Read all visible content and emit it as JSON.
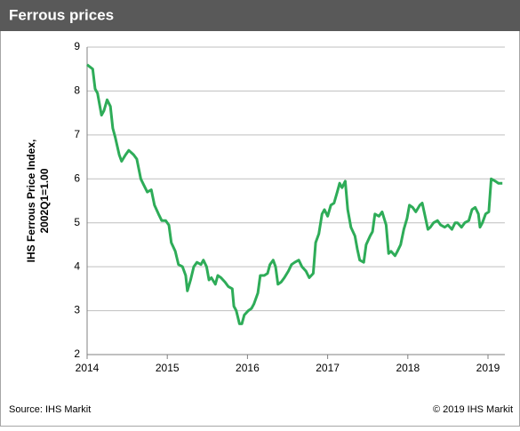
{
  "chart_data": {
    "type": "line",
    "title": "Ferrous prices",
    "ylabel": [
      "IHS Ferrous Price Index,",
      "2002Q1=1.00"
    ],
    "source": "Source: IHS Markit",
    "copyright": "© 2019 IHS Markit",
    "color": "#2eac58",
    "xlim": [
      2014,
      2019.21
    ],
    "xticks": [
      2014,
      2015,
      2016,
      2017,
      2018,
      2019
    ],
    "ylim": [
      2,
      9
    ],
    "yticks": [
      2,
      3,
      4,
      5,
      6,
      7,
      8,
      9
    ],
    "grid": true,
    "x": [
      2014.0,
      2014.07,
      2014.1,
      2014.13,
      2014.18,
      2014.21,
      2014.25,
      2014.29,
      2014.32,
      2014.35,
      2014.4,
      2014.43,
      2014.48,
      2014.52,
      2014.58,
      2014.62,
      2014.67,
      2014.71,
      2014.75,
      2014.8,
      2014.84,
      2014.89,
      2014.93,
      2014.98,
      2015.02,
      2015.05,
      2015.1,
      2015.14,
      2015.19,
      2015.23,
      2015.25,
      2015.29,
      2015.33,
      2015.37,
      2015.42,
      2015.45,
      2015.49,
      2015.52,
      2015.55,
      2015.6,
      2015.63,
      2015.67,
      2015.72,
      2015.76,
      2015.81,
      2015.83,
      2015.86,
      2015.9,
      2015.93,
      2015.96,
      2016.01,
      2016.05,
      2016.08,
      2016.13,
      2016.16,
      2016.21,
      2016.25,
      2016.28,
      2016.32,
      2016.35,
      2016.38,
      2016.42,
      2016.46,
      2016.51,
      2016.55,
      2016.59,
      2016.64,
      2016.68,
      2016.73,
      2016.77,
      2016.82,
      2016.85,
      2016.89,
      2016.93,
      2016.96,
      2017.0,
      2017.04,
      2017.08,
      2017.12,
      2017.15,
      2017.18,
      2017.22,
      2017.25,
      2017.29,
      2017.34,
      2017.37,
      2017.4,
      2017.45,
      2017.48,
      2017.53,
      2017.56,
      2017.59,
      2017.64,
      2017.68,
      2017.73,
      2017.76,
      2017.79,
      2017.84,
      2017.87,
      2017.91,
      2017.95,
      2017.99,
      2018.02,
      2018.06,
      2018.1,
      2018.15,
      2018.18,
      2018.21,
      2018.25,
      2018.28,
      2018.32,
      2018.37,
      2018.41,
      2018.46,
      2018.5,
      2018.55,
      2018.59,
      2018.62,
      2018.67,
      2018.71,
      2018.76,
      2018.8,
      2018.84,
      2018.88,
      2018.9,
      2018.93,
      2018.97,
      2019.01,
      2019.04,
      2019.09,
      2019.13,
      2019.18
    ],
    "values": [
      8.6,
      8.5,
      8.05,
      7.95,
      7.45,
      7.55,
      7.8,
      7.65,
      7.15,
      6.95,
      6.55,
      6.4,
      6.55,
      6.65,
      6.55,
      6.45,
      6.0,
      5.85,
      5.7,
      5.75,
      5.4,
      5.2,
      5.05,
      5.05,
      4.95,
      4.55,
      4.35,
      4.05,
      4.0,
      3.8,
      3.45,
      3.7,
      4.0,
      4.1,
      4.05,
      4.15,
      4.0,
      3.7,
      3.75,
      3.6,
      3.8,
      3.75,
      3.65,
      3.55,
      3.5,
      3.1,
      3.0,
      2.7,
      2.7,
      2.9,
      3.0,
      3.05,
      3.15,
      3.4,
      3.8,
      3.8,
      3.85,
      4.05,
      4.15,
      4.0,
      3.6,
      3.65,
      3.75,
      3.9,
      4.05,
      4.1,
      4.15,
      4.0,
      3.9,
      3.75,
      3.85,
      4.55,
      4.75,
      5.2,
      5.3,
      5.15,
      5.4,
      5.45,
      5.7,
      5.9,
      5.8,
      5.95,
      5.3,
      4.9,
      4.7,
      4.4,
      4.15,
      4.1,
      4.5,
      4.7,
      4.8,
      5.2,
      5.15,
      5.25,
      4.95,
      4.3,
      4.35,
      4.25,
      4.35,
      4.5,
      4.85,
      5.1,
      5.4,
      5.35,
      5.25,
      5.4,
      5.45,
      5.2,
      4.85,
      4.9,
      5.0,
      5.05,
      4.95,
      4.9,
      4.95,
      4.85,
      5.0,
      5.0,
      4.9,
      5.0,
      5.05,
      5.3,
      5.35,
      5.2,
      4.9,
      5.0,
      5.2,
      5.25,
      6.0,
      5.95,
      5.9,
      5.9
    ]
  }
}
